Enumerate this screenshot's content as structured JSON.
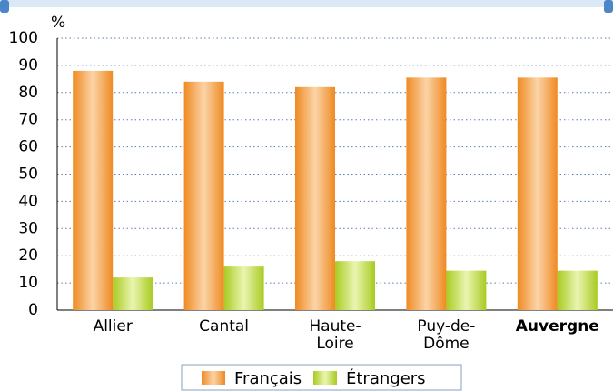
{
  "chart_data": {
    "type": "bar",
    "y_label": "%",
    "categories": [
      "Allier",
      "Cantal",
      "Haute-Loire",
      "Puy-de-Dôme",
      "Auvergne"
    ],
    "highlight": "Auvergne",
    "series": [
      {
        "name": "Français",
        "color": "#f0952f",
        "values": [
          88,
          84,
          82,
          85.5,
          85.5
        ]
      },
      {
        "name": "Étrangers",
        "color": "#b5d334",
        "values": [
          12,
          16,
          18,
          14.5,
          14.5
        ]
      }
    ],
    "ylim": [
      0,
      100
    ],
    "yticks": [
      0,
      10,
      20,
      30,
      40,
      50,
      60,
      70,
      80,
      90,
      100
    ],
    "grid": true
  }
}
